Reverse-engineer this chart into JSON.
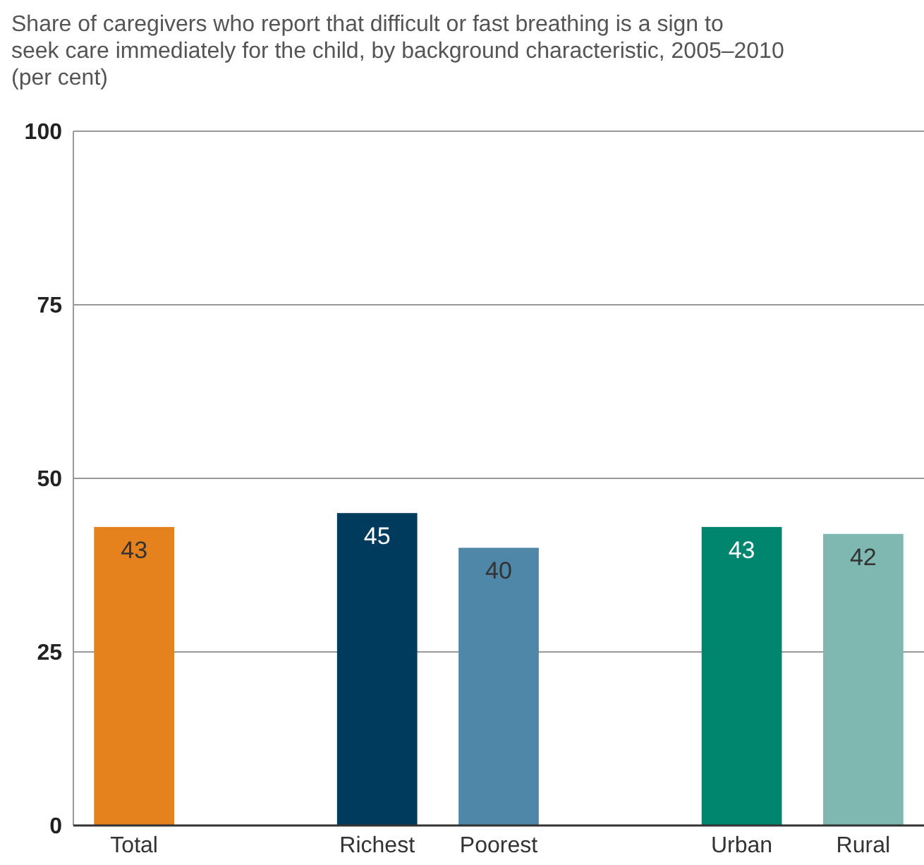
{
  "chart_data": {
    "type": "bar",
    "title": "Share of caregivers who report that difficult or fast breathing is a sign to seek care immediately for the child, by background characteristic, 2005–2010 (per cent)",
    "categories": [
      "Total",
      null,
      "Richest",
      "Poorest",
      null,
      "Urban",
      "Rural"
    ],
    "values": [
      43,
      null,
      45,
      40,
      null,
      43,
      42
    ],
    "colors": [
      "#e5821e",
      null,
      "#003a5d",
      "#4f87a8",
      null,
      "#00856f",
      "#7fb8b0"
    ],
    "ylim": [
      0,
      100
    ],
    "yticks": [
      0,
      25,
      50,
      75,
      100
    ],
    "grid": "y",
    "data_labels": true
  }
}
